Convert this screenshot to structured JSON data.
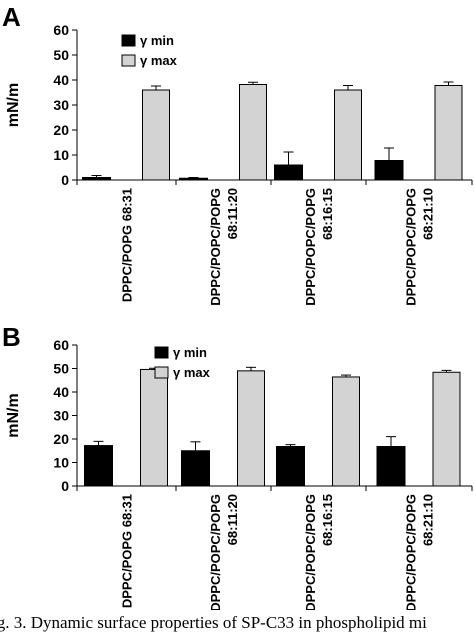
{
  "caption": "ig. 3. Dynamic surface properties of SP-C33 in phospholipid mi",
  "chart_data": [
    {
      "panel": "A",
      "type": "bar",
      "ylabel": "mN/m",
      "ylim": [
        0,
        60
      ],
      "yticks": [
        "0",
        "10",
        "20",
        "30",
        "40",
        "50",
        "60"
      ],
      "categories": [
        [
          "DPPC/POPG 68:31"
        ],
        [
          "DPPC/POPC/POPG",
          "68:11:20"
        ],
        [
          "DPPC/POPC/POPG",
          "68:16:15"
        ],
        [
          "DPPC/POPC/POPG",
          "68:21:10"
        ]
      ],
      "series": [
        {
          "name": "γ min",
          "color": "#000000",
          "values": [
            1.0,
            0.7,
            6.0,
            7.8
          ],
          "errors": [
            0.8,
            0.3,
            5.2,
            5.0
          ]
        },
        {
          "name": "γ max",
          "color": "#d3d3d3",
          "values": [
            36.0,
            38.2,
            36.0,
            37.8
          ],
          "errors": [
            1.6,
            0.9,
            1.8,
            1.4
          ]
        }
      ],
      "legend": "top-left",
      "grid": false
    },
    {
      "panel": "B",
      "type": "bar",
      "ylabel": "mN/m",
      "ylim": [
        0,
        60
      ],
      "yticks": [
        "0",
        "10",
        "20",
        "30",
        "40",
        "50",
        "60"
      ],
      "categories": [
        [
          "DPPC/POPG 68:31"
        ],
        [
          "DPPC/POPC/POPG",
          "68:11:20"
        ],
        [
          "DPPC/POPC/POPG",
          "68:16:15"
        ],
        [
          "DPPC/POPC/POPG",
          "68:21:10"
        ]
      ],
      "series": [
        {
          "name": "γ min",
          "color": "#000000",
          "values": [
            17.2,
            15.0,
            16.8,
            16.8
          ],
          "errors": [
            1.8,
            3.8,
            0.8,
            4.2
          ]
        },
        {
          "name": "γ max",
          "color": "#d3d3d3",
          "values": [
            49.6,
            49.0,
            46.4,
            48.4
          ],
          "errors": [
            0.5,
            1.5,
            0.8,
            0.8
          ]
        }
      ],
      "legend": "top-left",
      "grid": false
    }
  ]
}
